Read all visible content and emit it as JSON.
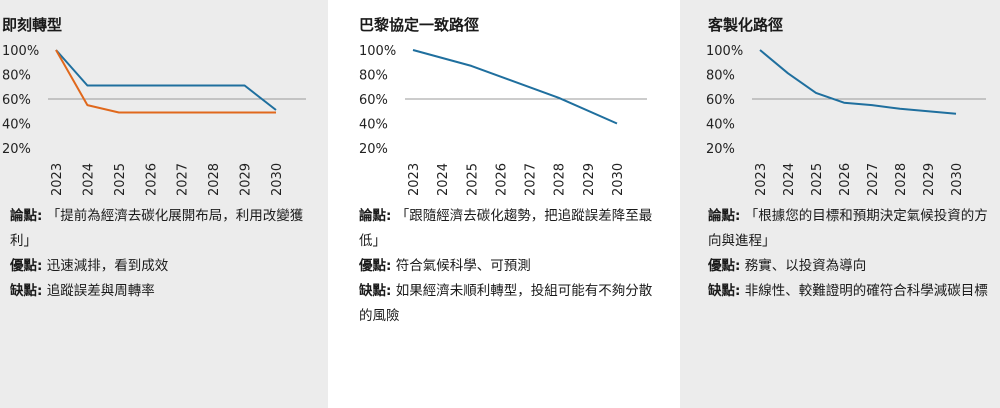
{
  "panels": [
    {
      "title": "即刻轉型",
      "pros_label": "論點:",
      "pros_text": "「提前為經濟去碳化展開布局，利用改變獲利」",
      "adv_label": "優點:",
      "adv_text": "迅速減排，看到成效",
      "dis_label": "缺點:",
      "dis_text": "追蹤誤差與周轉率"
    },
    {
      "title": "巴黎協定一致路徑",
      "pros_label": "論點:",
      "pros_text": "「跟隨經濟去碳化趨勢，把追蹤誤差降至最低」",
      "adv_label": "優點:",
      "adv_text": "符合氣候科學、可預測",
      "dis_label": "缺點:",
      "dis_text": "如果經濟未順利轉型，投組可能有不夠分散的風險"
    },
    {
      "title": "客製化路徑",
      "pros_label": "論點:",
      "pros_text": "「根據您的目標和預期決定氣候投資的方向與進程」",
      "adv_label": "優點:",
      "adv_text": "務實、以投資為導向",
      "dis_label": "缺點:",
      "dis_text": "非線性、較難證明的確符合科學減碳目標"
    }
  ],
  "chart_data": [
    {
      "type": "line",
      "title": "即刻轉型",
      "x": [
        2023,
        2024,
        2025,
        2026,
        2027,
        2028,
        2029,
        2030
      ],
      "ylim": [
        20,
        100
      ],
      "yticks": [
        "100%",
        "80%",
        "60%",
        "40%",
        "20%"
      ],
      "ytick_values": [
        100,
        80,
        60,
        40,
        20
      ],
      "reference_line": 60,
      "series": [
        {
          "color": "#1f6f9e",
          "points": [
            [
              2023,
              100
            ],
            [
              2024,
              71
            ],
            [
              2029,
              71
            ],
            [
              2030,
              51
            ]
          ]
        },
        {
          "color": "#e0681c",
          "points": [
            [
              2023,
              100
            ],
            [
              2024,
              55
            ],
            [
              2025,
              49
            ],
            [
              2030,
              49
            ]
          ]
        }
      ]
    },
    {
      "type": "line",
      "title": "巴黎協定一致路徑",
      "x": [
        2023,
        2024,
        2025,
        2026,
        2027,
        2028,
        2029,
        2030
      ],
      "ylim": [
        20,
        100
      ],
      "yticks": [
        "100%",
        "80%",
        "60%",
        "40%",
        "20%"
      ],
      "ytick_values": [
        100,
        80,
        60,
        40,
        20
      ],
      "reference_line": 60,
      "series": [
        {
          "color": "#1f6f9e",
          "points": [
            [
              2023,
              100
            ],
            [
              2025,
              87
            ],
            [
              2028,
              61
            ],
            [
              2030,
              40
            ]
          ]
        }
      ]
    },
    {
      "type": "line",
      "title": "客製化路徑",
      "x": [
        2023,
        2024,
        2025,
        2026,
        2027,
        2028,
        2029,
        2030
      ],
      "ylim": [
        20,
        100
      ],
      "yticks": [
        "100%",
        "80%",
        "60%",
        "40%",
        "20%"
      ],
      "ytick_values": [
        100,
        80,
        60,
        40,
        20
      ],
      "reference_line": 60,
      "series": [
        {
          "color": "#1f6f9e",
          "points": [
            [
              2023,
              100
            ],
            [
              2024,
              81
            ],
            [
              2025,
              65
            ],
            [
              2026,
              57
            ],
            [
              2027,
              55
            ],
            [
              2028,
              52
            ],
            [
              2029,
              50
            ],
            [
              2030,
              48
            ]
          ]
        }
      ]
    }
  ]
}
